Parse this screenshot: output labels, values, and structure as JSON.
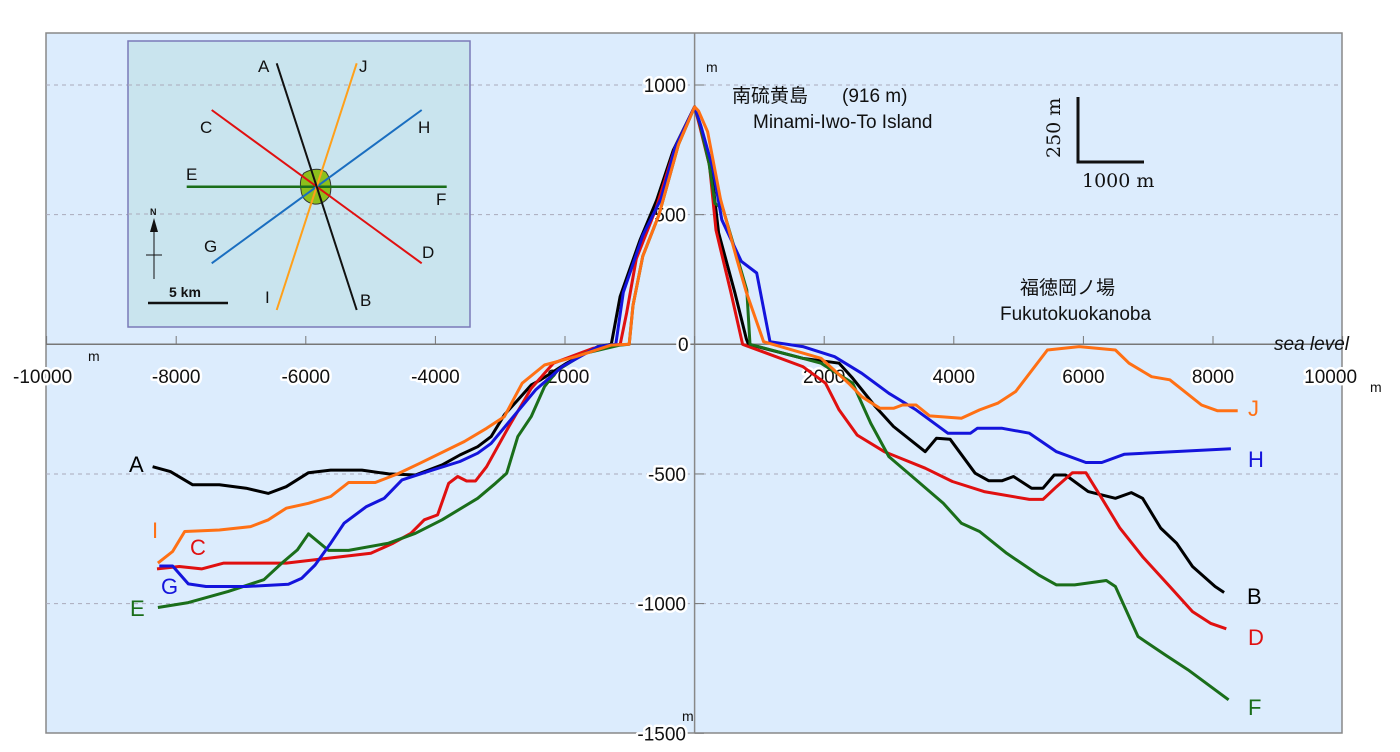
{
  "chart_data": {
    "type": "line",
    "title": "",
    "xlabel": "",
    "ylabel": "",
    "xlim": [
      -10000,
      10000
    ],
    "ylim": [
      -1500,
      1000
    ],
    "grid": true,
    "x_ticks": [
      "-10000",
      "-8000",
      "-6000",
      "-4000",
      "-2000",
      "0",
      "2000",
      "4000",
      "6000",
      "8000",
      "10000"
    ],
    "y_ticks": [
      "1000",
      "500",
      "0",
      "-500",
      "-1000",
      "-1500"
    ],
    "x_unit": "m",
    "y_unit": "m",
    "sea_level_label": "sea level",
    "series": [
      {
        "name": "A-B",
        "left_label": "A",
        "right_label": "B",
        "color": "#000000",
        "points": [
          [
            -8364,
            -472
          ],
          [
            -8089,
            -491
          ],
          [
            -7746,
            -542
          ],
          [
            -7333,
            -542
          ],
          [
            -6921,
            -555
          ],
          [
            -6577,
            -575
          ],
          [
            -6302,
            -549
          ],
          [
            -5959,
            -495
          ],
          [
            -5615,
            -485
          ],
          [
            -5134,
            -485
          ],
          [
            -4722,
            -500
          ],
          [
            -4309,
            -504
          ],
          [
            -3897,
            -465
          ],
          [
            -3622,
            -427
          ],
          [
            -3347,
            -395
          ],
          [
            -3141,
            -356
          ],
          [
            -2935,
            -272
          ],
          [
            -2729,
            -215
          ],
          [
            -2522,
            -157
          ],
          [
            -2385,
            -138
          ],
          [
            -1973,
            -73
          ],
          [
            -1491,
            -9
          ],
          [
            -1285,
            0
          ],
          [
            -1150,
            184
          ],
          [
            -842,
            402
          ],
          [
            -585,
            556
          ],
          [
            -329,
            749
          ],
          [
            0,
            916
          ],
          [
            90,
            840
          ],
          [
            250,
            690
          ],
          [
            370,
            430
          ],
          [
            620,
            200
          ],
          [
            800,
            20
          ],
          [
            832,
            0
          ],
          [
            1670,
            -54
          ],
          [
            2230,
            -73
          ],
          [
            2440,
            -131
          ],
          [
            2789,
            -240
          ],
          [
            3069,
            -317
          ],
          [
            3558,
            -414
          ],
          [
            3733,
            -362
          ],
          [
            3943,
            -366
          ],
          [
            4328,
            -497
          ],
          [
            4537,
            -526
          ],
          [
            4747,
            -526
          ],
          [
            4921,
            -510
          ],
          [
            5201,
            -555
          ],
          [
            5376,
            -555
          ],
          [
            5550,
            -504
          ],
          [
            5725,
            -504
          ],
          [
            6074,
            -568
          ],
          [
            6494,
            -594
          ],
          [
            6739,
            -572
          ],
          [
            6913,
            -594
          ],
          [
            7193,
            -709
          ],
          [
            7438,
            -767
          ],
          [
            7683,
            -857
          ],
          [
            8032,
            -934
          ],
          [
            8172,
            -957
          ]
        ]
      },
      {
        "name": "C-D",
        "left_label": "C",
        "right_label": "D",
        "color": "#e01010",
        "points": [
          [
            -8296,
            -866
          ],
          [
            -7952,
            -857
          ],
          [
            -7608,
            -866
          ],
          [
            -7265,
            -844
          ],
          [
            -6302,
            -844
          ],
          [
            -4997,
            -806
          ],
          [
            -4653,
            -767
          ],
          [
            -4378,
            -729
          ],
          [
            -4172,
            -677
          ],
          [
            -3966,
            -658
          ],
          [
            -3794,
            -536
          ],
          [
            -3656,
            -510
          ],
          [
            -3519,
            -527
          ],
          [
            -3381,
            -527
          ],
          [
            -3210,
            -472
          ],
          [
            -2866,
            -317
          ],
          [
            -2522,
            -170
          ],
          [
            -2179,
            -73
          ],
          [
            -1560,
            -15
          ],
          [
            -1148,
            0
          ],
          [
            -1050,
            120
          ],
          [
            -900,
            330
          ],
          [
            -600,
            520
          ],
          [
            -300,
            760
          ],
          [
            0,
            916
          ],
          [
            80,
            840
          ],
          [
            230,
            690
          ],
          [
            330,
            440
          ],
          [
            560,
            200
          ],
          [
            740,
            0
          ],
          [
            1670,
            -86
          ],
          [
            2020,
            -150
          ],
          [
            2230,
            -253
          ],
          [
            2510,
            -350
          ],
          [
            2929,
            -414
          ],
          [
            3558,
            -478
          ],
          [
            3978,
            -529
          ],
          [
            4467,
            -568
          ],
          [
            5166,
            -598
          ],
          [
            5376,
            -598
          ],
          [
            5585,
            -549
          ],
          [
            5830,
            -495
          ],
          [
            6039,
            -495
          ],
          [
            6284,
            -594
          ],
          [
            6564,
            -709
          ],
          [
            6913,
            -819
          ],
          [
            7333,
            -934
          ],
          [
            7683,
            -1031
          ],
          [
            7962,
            -1076
          ],
          [
            8206,
            -1097
          ]
        ]
      },
      {
        "name": "E-F",
        "left_label": "E",
        "right_label": "F",
        "color": "#1a6e1a",
        "points": [
          [
            -8282,
            -1015
          ],
          [
            -7814,
            -996
          ],
          [
            -7196,
            -953
          ],
          [
            -6646,
            -908
          ],
          [
            -6371,
            -844
          ],
          [
            -6130,
            -793
          ],
          [
            -5959,
            -731
          ],
          [
            -5650,
            -795
          ],
          [
            -5340,
            -795
          ],
          [
            -4722,
            -767
          ],
          [
            -4309,
            -729
          ],
          [
            -3897,
            -677
          ],
          [
            -3347,
            -594
          ],
          [
            -3072,
            -536
          ],
          [
            -2900,
            -497
          ],
          [
            -2729,
            -356
          ],
          [
            -2522,
            -279
          ],
          [
            -2316,
            -163
          ],
          [
            -2110,
            -99
          ],
          [
            -1697,
            -35
          ],
          [
            -1148,
            -3
          ],
          [
            -1010,
            0
          ],
          [
            -950,
            150
          ],
          [
            -800,
            340
          ],
          [
            -550,
            500
          ],
          [
            -250,
            770
          ],
          [
            0,
            916
          ],
          [
            80,
            850
          ],
          [
            220,
            700
          ],
          [
            315,
            543
          ],
          [
            438,
            522
          ],
          [
            805,
            209
          ],
          [
            855,
            0
          ],
          [
            1950,
            -73
          ],
          [
            2440,
            -150
          ],
          [
            2719,
            -305
          ],
          [
            2999,
            -433
          ],
          [
            3418,
            -523
          ],
          [
            3838,
            -613
          ],
          [
            4118,
            -690
          ],
          [
            4398,
            -722
          ],
          [
            4817,
            -806
          ],
          [
            5306,
            -889
          ],
          [
            5585,
            -928
          ],
          [
            5865,
            -928
          ],
          [
            6354,
            -911
          ],
          [
            6494,
            -934
          ],
          [
            6843,
            -1127
          ],
          [
            7263,
            -1198
          ],
          [
            7612,
            -1255
          ],
          [
            8241,
            -1371
          ]
        ]
      },
      {
        "name": "G-H",
        "left_label": "G",
        "right_label": "H",
        "color": "#1414dc",
        "points": [
          [
            -8261,
            -855
          ],
          [
            -8055,
            -855
          ],
          [
            -7814,
            -924
          ],
          [
            -7540,
            -934
          ],
          [
            -6921,
            -934
          ],
          [
            -6268,
            -925
          ],
          [
            -6062,
            -902
          ],
          [
            -5856,
            -851
          ],
          [
            -5615,
            -767
          ],
          [
            -5409,
            -690
          ],
          [
            -5065,
            -626
          ],
          [
            -4790,
            -594
          ],
          [
            -4515,
            -523
          ],
          [
            -4034,
            -484
          ],
          [
            -3622,
            -452
          ],
          [
            -3347,
            -420
          ],
          [
            -3141,
            -382
          ],
          [
            -2797,
            -279
          ],
          [
            -2454,
            -176
          ],
          [
            -2041,
            -86
          ],
          [
            -1491,
            -9
          ],
          [
            -1216,
            0
          ],
          [
            -1100,
            200
          ],
          [
            -800,
            420
          ],
          [
            -520,
            560
          ],
          [
            -300,
            760
          ],
          [
            0,
            916
          ],
          [
            100,
            840
          ],
          [
            280,
            680
          ],
          [
            420,
            480
          ],
          [
            720,
            320
          ],
          [
            958,
            275
          ],
          [
            1163,
            10
          ],
          [
            1670,
            -9
          ],
          [
            2160,
            -48
          ],
          [
            2580,
            -112
          ],
          [
            2999,
            -189
          ],
          [
            3418,
            -253
          ],
          [
            3908,
            -343
          ],
          [
            4257,
            -343
          ],
          [
            4362,
            -324
          ],
          [
            4747,
            -324
          ],
          [
            5166,
            -343
          ],
          [
            5585,
            -414
          ],
          [
            6039,
            -456
          ],
          [
            6284,
            -456
          ],
          [
            6634,
            -424
          ],
          [
            8276,
            -403
          ]
        ]
      },
      {
        "name": "I-J",
        "left_label": "I",
        "right_label": "J",
        "color": "#ff7014",
        "points": [
          [
            -8282,
            -844
          ],
          [
            -8055,
            -799
          ],
          [
            -7869,
            -722
          ],
          [
            -7333,
            -716
          ],
          [
            -6852,
            -703
          ],
          [
            -6577,
            -677
          ],
          [
            -6302,
            -632
          ],
          [
            -5959,
            -613
          ],
          [
            -5615,
            -587
          ],
          [
            -5340,
            -533
          ],
          [
            -4928,
            -533
          ],
          [
            -4584,
            -500
          ],
          [
            -4240,
            -459
          ],
          [
            -3553,
            -375
          ],
          [
            -3210,
            -324
          ],
          [
            -2935,
            -279
          ],
          [
            -2660,
            -150
          ],
          [
            -2316,
            -80
          ],
          [
            -1835,
            -48
          ],
          [
            -1285,
            -3
          ],
          [
            -1010,
            0
          ],
          [
            -950,
            150
          ],
          [
            -800,
            340
          ],
          [
            -550,
            500
          ],
          [
            -250,
            770
          ],
          [
            0,
            916
          ],
          [
            60,
            900
          ],
          [
            200,
            820
          ],
          [
            400,
            560
          ],
          [
            650,
            330
          ],
          [
            800,
            200
          ],
          [
            1065,
            10
          ],
          [
            1950,
            -54
          ],
          [
            2377,
            -150
          ],
          [
            2580,
            -202
          ],
          [
            2859,
            -247
          ],
          [
            3069,
            -247
          ],
          [
            3209,
            -234
          ],
          [
            3418,
            -234
          ],
          [
            3628,
            -276
          ],
          [
            4118,
            -285
          ],
          [
            4398,
            -253
          ],
          [
            4677,
            -227
          ],
          [
            4956,
            -182
          ],
          [
            5445,
            -22
          ],
          [
            5935,
            -9
          ],
          [
            6494,
            -22
          ],
          [
            6704,
            -73
          ],
          [
            7053,
            -125
          ],
          [
            7333,
            -137
          ],
          [
            7822,
            -234
          ],
          [
            8067,
            -256
          ],
          [
            8381,
            -256
          ]
        ]
      }
    ],
    "annotations": {
      "island_jp": "南硫黄島",
      "island_height": "(916 m)",
      "island_en": "Minami-Iwo-To Island",
      "seamount_jp": "福徳岡ノ場",
      "seamount_en": "Fukutokuokanoba",
      "scale_vertical": "250 m",
      "scale_horizontal": "1000 m"
    },
    "inset_map": {
      "labels": [
        "A",
        "B",
        "C",
        "D",
        "E",
        "F",
        "G",
        "H",
        "I",
        "J"
      ],
      "north_label": "N",
      "scale_label": "5 km"
    }
  }
}
